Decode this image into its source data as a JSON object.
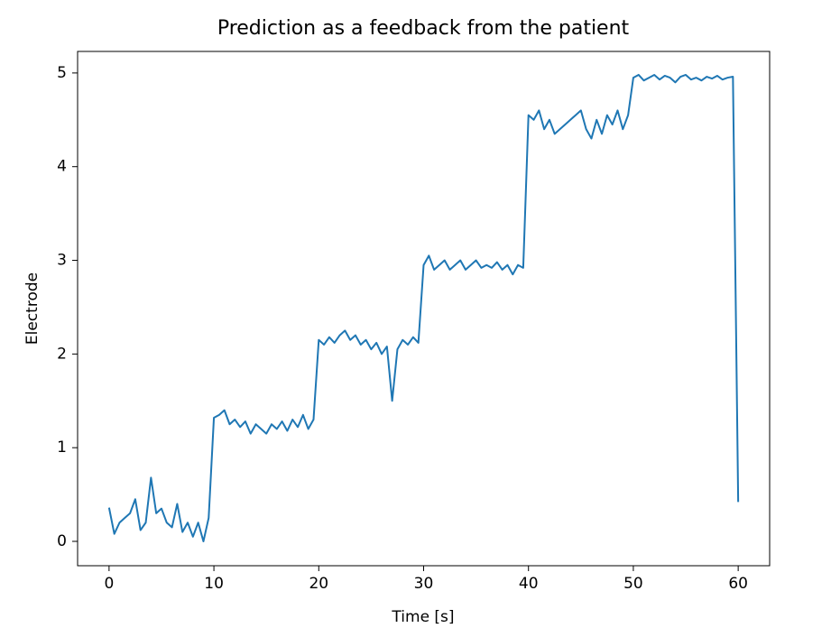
{
  "chart_data": {
    "type": "line",
    "title": "Prediction as a feedback from the patient",
    "x_label": "Time [s]",
    "y_label": "Electrode",
    "x": [
      0,
      0.5,
      1,
      1.5,
      2,
      2.5,
      3,
      3.5,
      4,
      4.5,
      5,
      5.5,
      6,
      6.5,
      7,
      7.5,
      8,
      8.5,
      9,
      9.5,
      10,
      10.5,
      11,
      11.5,
      12,
      12.5,
      13,
      13.5,
      14,
      14.5,
      15,
      15.5,
      16,
      16.5,
      17,
      17.5,
      18,
      18.5,
      19,
      19.5,
      20,
      20.5,
      21,
      21.5,
      22,
      22.5,
      23,
      23.5,
      24,
      24.5,
      25,
      25.5,
      26,
      26.5,
      27,
      27.5,
      28,
      28.5,
      29,
      29.5,
      30,
      30.5,
      31,
      31.5,
      32,
      32.5,
      33,
      33.5,
      34,
      34.5,
      35,
      35.5,
      36,
      36.5,
      37,
      37.5,
      38,
      38.5,
      39,
      39.5,
      40,
      40.5,
      41,
      41.5,
      42,
      42.5,
      43,
      43.5,
      44,
      44.5,
      45,
      45.5,
      46,
      46.5,
      47,
      47.5,
      48,
      48.5,
      49,
      49.5,
      50,
      50.5,
      51,
      51.5,
      52,
      52.5,
      53,
      53.5,
      54,
      54.5,
      55,
      55.5,
      56,
      56.5,
      57,
      57.5,
      58,
      58.5,
      59,
      59.5,
      60
    ],
    "series": [
      {
        "name": "Prediction",
        "color": "#1f77b4",
        "values": [
          0.36,
          0.08,
          0.2,
          0.25,
          0.3,
          0.45,
          0.12,
          0.2,
          0.68,
          0.3,
          0.35,
          0.2,
          0.15,
          0.4,
          0.1,
          0.2,
          0.05,
          0.2,
          0.0,
          0.25,
          1.32,
          1.35,
          1.4,
          1.25,
          1.3,
          1.22,
          1.28,
          1.15,
          1.25,
          1.2,
          1.15,
          1.25,
          1.2,
          1.28,
          1.18,
          1.3,
          1.22,
          1.35,
          1.2,
          1.3,
          2.15,
          2.1,
          2.18,
          2.12,
          2.2,
          2.25,
          2.15,
          2.2,
          2.1,
          2.15,
          2.05,
          2.12,
          2.0,
          2.08,
          1.5,
          2.05,
          2.15,
          2.1,
          2.18,
          2.12,
          2.95,
          3.05,
          2.9,
          2.95,
          3.0,
          2.9,
          2.95,
          3.0,
          2.9,
          2.95,
          3.0,
          2.92,
          2.95,
          2.92,
          2.98,
          2.9,
          2.95,
          2.85,
          2.95,
          2.92,
          4.55,
          4.5,
          4.6,
          4.4,
          4.5,
          4.35,
          4.4,
          4.45,
          4.5,
          4.55,
          4.6,
          4.4,
          4.3,
          4.5,
          4.35,
          4.55,
          4.45,
          4.6,
          4.4,
          4.55,
          4.95,
          4.98,
          4.92,
          4.95,
          4.98,
          4.93,
          4.97,
          4.95,
          4.9,
          4.96,
          4.98,
          4.93,
          4.95,
          4.92,
          4.96,
          4.94,
          4.97,
          4.93,
          4.95,
          4.96,
          0.42
        ]
      }
    ],
    "xlim": [
      -3,
      63
    ],
    "ylim": [
      -0.26,
      5.23
    ],
    "xticks": [
      0,
      10,
      20,
      30,
      40,
      50,
      60
    ],
    "yticks": [
      0,
      1,
      2,
      3,
      4,
      5
    ]
  }
}
